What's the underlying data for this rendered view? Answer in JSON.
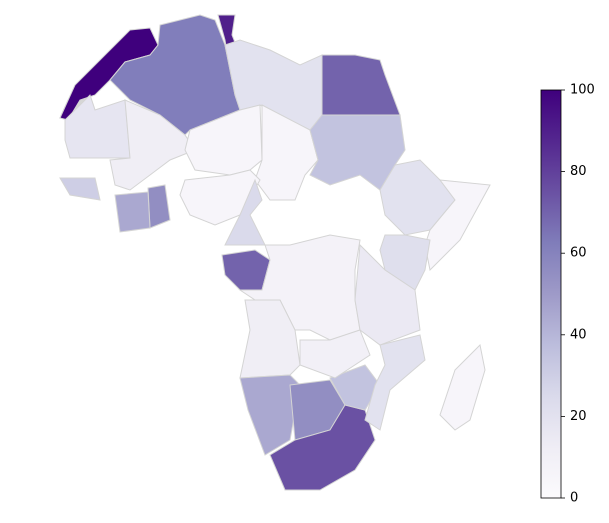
{
  "chart_data": {
    "type": "choropleth",
    "colormap": "Purples",
    "zlim": [
      0,
      100
    ],
    "zticks": [
      0,
      20,
      40,
      60,
      80,
      100
    ],
    "values": [
      100,
      62,
      90,
      20,
      70,
      18,
      12,
      5,
      5,
      35,
      20,
      5,
      22,
      5,
      55,
      45,
      30,
      25,
      70,
      8,
      12,
      45,
      55,
      75,
      35,
      20,
      5,
      15,
      10
    ]
  }
}
